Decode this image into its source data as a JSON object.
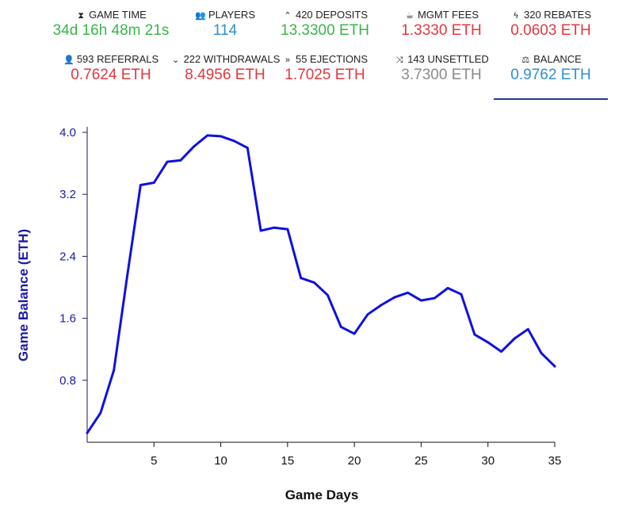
{
  "stats": {
    "row1": [
      {
        "id": "game-time",
        "icon": "hourglass-icon",
        "glyph": "⧗",
        "label": "GAME TIME",
        "value": "34d 16h 48m 21s",
        "color": "green"
      },
      {
        "id": "players",
        "icon": "users-icon",
        "glyph": "👥",
        "label": "PLAYERS",
        "value": "114",
        "color": "blue"
      },
      {
        "id": "deposits",
        "icon": "chevron-up-icon",
        "glyph": "⌃",
        "label": "420 DEPOSITS",
        "value": "13.3300 ETH",
        "color": "green"
      },
      {
        "id": "mgmt-fees",
        "icon": "coffee-icon",
        "glyph": "☕",
        "label": "MGMT FEES",
        "value": "1.3330 ETH",
        "color": "red"
      },
      {
        "id": "rebates",
        "icon": "bolt-icon",
        "glyph": "ϟ",
        "label": "320 REBATES",
        "value": "0.0603 ETH",
        "color": "red"
      }
    ],
    "row2": [
      {
        "id": "referrals",
        "icon": "user-plus-icon",
        "glyph": "👤",
        "label": "593 REFERRALS",
        "value": "0.7624 ETH",
        "color": "red"
      },
      {
        "id": "withdrawals",
        "icon": "chevron-down-icon",
        "glyph": "⌄",
        "label": "222 WITHDRAWALS",
        "value": "8.4956 ETH",
        "color": "red"
      },
      {
        "id": "ejections",
        "icon": "double-chevron-down-icon",
        "glyph": "»",
        "label": "55 EJECTIONS",
        "value": "1.7025 ETH",
        "color": "red"
      },
      {
        "id": "unsettled",
        "icon": "shuffle-icon",
        "glyph": "⤨",
        "label": "143 UNSETTLED",
        "value": "3.7300 ETH",
        "color": "gray"
      },
      {
        "id": "balance",
        "icon": "balance-scale-icon",
        "glyph": "⚖",
        "label": "BALANCE",
        "value": "0.9762 ETH",
        "color": "blue",
        "active": true
      }
    ]
  },
  "chart_data": {
    "type": "line",
    "title": "",
    "xlabel": "Game Days",
    "ylabel": "Game Balance (ETH)",
    "xlim": [
      0,
      35
    ],
    "ylim": [
      0,
      4.0
    ],
    "xticks": [
      5,
      10,
      15,
      20,
      25,
      30,
      35
    ],
    "yticks": [
      0.8,
      1.6,
      2.4,
      3.2,
      4.0
    ],
    "ytick_labels": [
      "0.8",
      "1.6",
      "2.4",
      "3.2",
      "4.0"
    ],
    "grid": false,
    "line_color": "#1010e0",
    "series": [
      {
        "x": [
          0,
          1,
          2,
          3,
          4,
          5,
          6,
          7,
          8,
          9,
          10,
          11,
          12,
          13,
          14,
          15,
          16,
          17,
          18,
          19,
          20,
          21,
          22,
          23,
          24,
          25,
          26,
          27,
          28,
          29,
          30,
          31,
          32,
          33,
          34,
          35
        ],
        "values": [
          0.12,
          0.38,
          0.93,
          2.15,
          3.32,
          3.35,
          3.62,
          3.64,
          3.82,
          3.96,
          3.95,
          3.89,
          3.8,
          2.73,
          2.77,
          2.75,
          2.12,
          2.06,
          1.9,
          1.49,
          1.4,
          1.65,
          1.77,
          1.87,
          1.93,
          1.83,
          1.86,
          1.99,
          1.91,
          1.39,
          1.29,
          1.17,
          1.34,
          1.46,
          1.15,
          0.98
        ]
      }
    ]
  }
}
